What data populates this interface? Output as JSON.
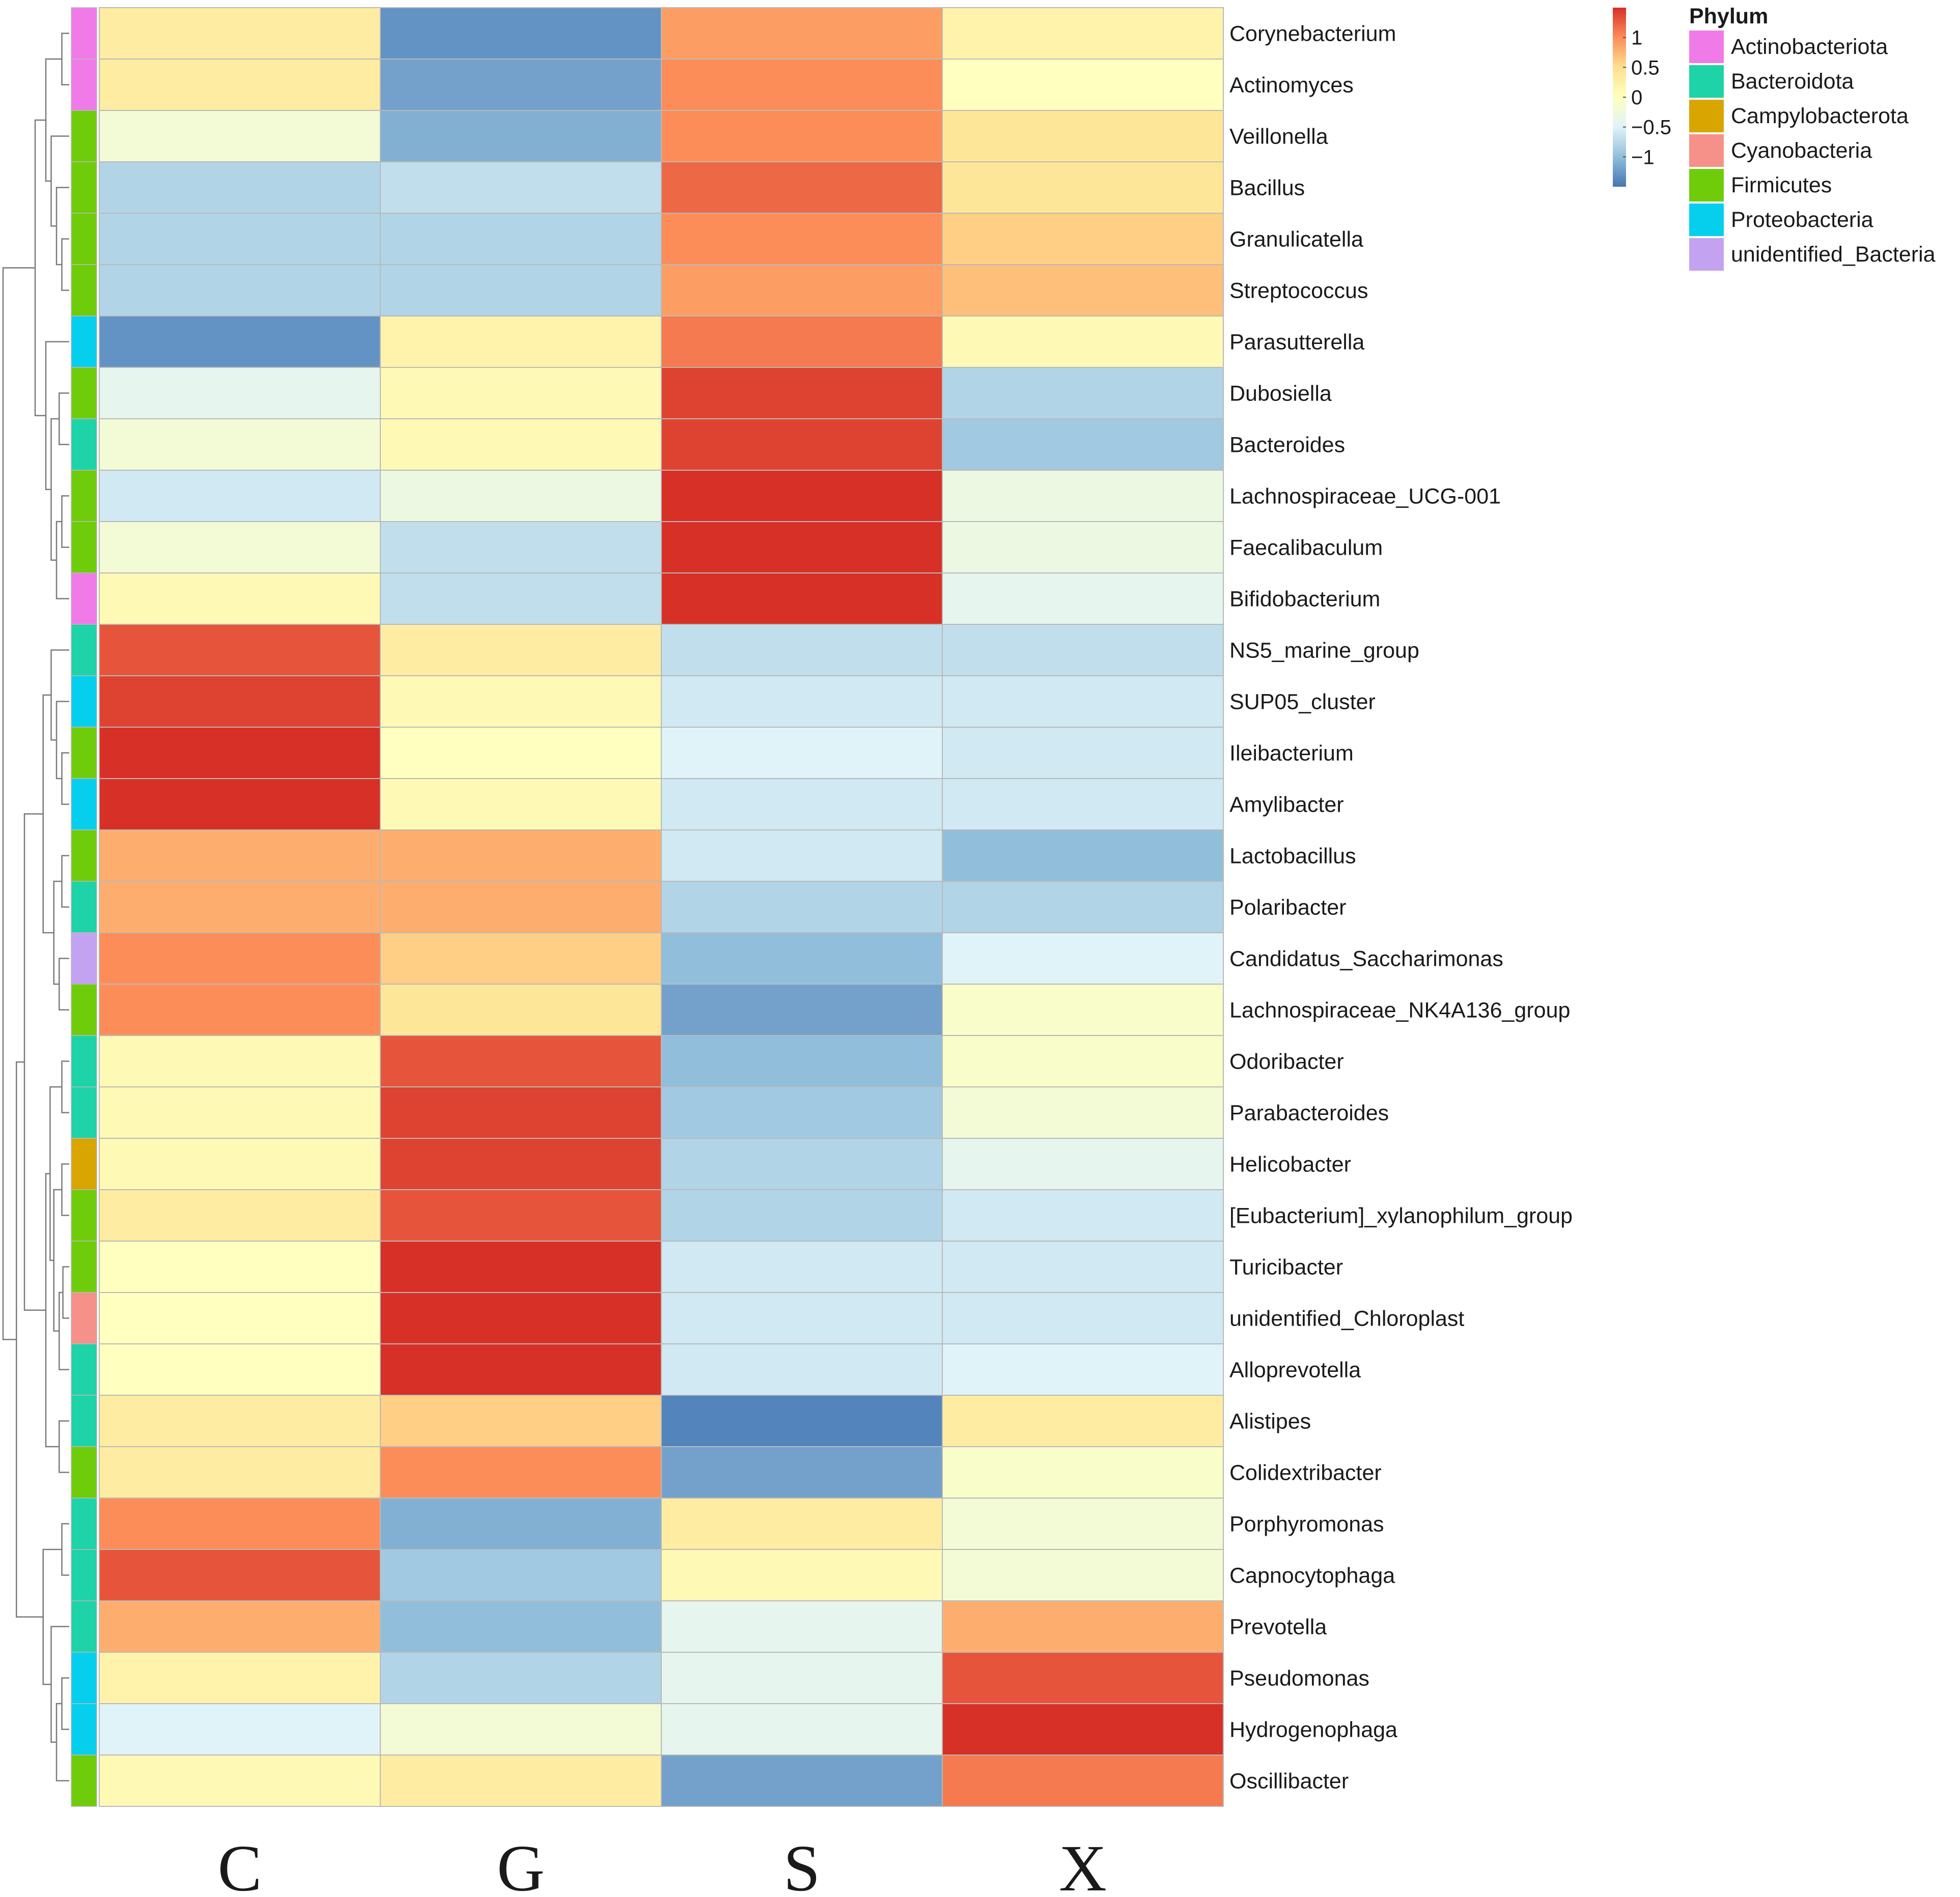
{
  "chart_data": {
    "type": "heatmap",
    "title": "",
    "xlabel": "",
    "ylabel": "",
    "value_range": [
      -1.5,
      1.5
    ],
    "columns": [
      "C",
      "G",
      "S",
      "X"
    ],
    "rows": [
      {
        "label": "Corynebacterium",
        "phylum": "Actinobacteriota",
        "values": [
          0.3,
          -1.3,
          0.9,
          0.2
        ]
      },
      {
        "label": "Actinomyces",
        "phylum": "Actinobacteriota",
        "values": [
          0.3,
          -1.2,
          1.0,
          0.0
        ]
      },
      {
        "label": "Veillonella",
        "phylum": "Firmicutes",
        "values": [
          -0.2,
          -1.1,
          1.0,
          0.4
        ]
      },
      {
        "label": "Bacillus",
        "phylum": "Firmicutes",
        "values": [
          -0.8,
          -0.7,
          1.2,
          0.4
        ]
      },
      {
        "label": "Granulicatella",
        "phylum": "Firmicutes",
        "values": [
          -0.8,
          -0.8,
          1.0,
          0.6
        ]
      },
      {
        "label": "Streptococcus",
        "phylum": "Firmicutes",
        "values": [
          -0.8,
          -0.8,
          0.9,
          0.7
        ]
      },
      {
        "label": "Parasutterella",
        "phylum": "Proteobacteria",
        "values": [
          -1.3,
          0.2,
          1.1,
          0.1
        ]
      },
      {
        "label": "Dubosiella",
        "phylum": "Firmicutes",
        "values": [
          -0.4,
          0.1,
          1.4,
          -0.8
        ]
      },
      {
        "label": "Bacteroides",
        "phylum": "Bacteroidota",
        "values": [
          -0.2,
          0.1,
          1.4,
          -0.9
        ]
      },
      {
        "label": "Lachnospiraceae_UCG-001",
        "phylum": "Firmicutes",
        "values": [
          -0.6,
          -0.3,
          1.5,
          -0.3
        ]
      },
      {
        "label": "Faecalibaculum",
        "phylum": "Firmicutes",
        "values": [
          -0.2,
          -0.7,
          1.5,
          -0.3
        ]
      },
      {
        "label": "Bifidobacterium",
        "phylum": "Actinobacteriota",
        "values": [
          0.1,
          -0.7,
          1.5,
          -0.4
        ]
      },
      {
        "label": "NS5_marine_group",
        "phylum": "Bacteroidota",
        "values": [
          1.3,
          0.3,
          -0.7,
          -0.7
        ]
      },
      {
        "label": "SUP05_cluster",
        "phylum": "Proteobacteria",
        "values": [
          1.4,
          0.1,
          -0.6,
          -0.6
        ]
      },
      {
        "label": "Ileibacterium",
        "phylum": "Firmicutes",
        "values": [
          1.5,
          0.0,
          -0.5,
          -0.6
        ]
      },
      {
        "label": "Amylibacter",
        "phylum": "Proteobacteria",
        "values": [
          1.5,
          0.1,
          -0.6,
          -0.6
        ]
      },
      {
        "label": "Lactobacillus",
        "phylum": "Firmicutes",
        "values": [
          0.8,
          0.8,
          -0.6,
          -1.0
        ]
      },
      {
        "label": "Polaribacter",
        "phylum": "Bacteroidota",
        "values": [
          0.8,
          0.8,
          -0.8,
          -0.8
        ]
      },
      {
        "label": "Candidatus_Saccharimonas",
        "phylum": "unidentified_Bacteria",
        "values": [
          1.0,
          0.6,
          -1.0,
          -0.5
        ]
      },
      {
        "label": "Lachnospiraceae_NK4A136_group",
        "phylum": "Firmicutes",
        "values": [
          1.0,
          0.4,
          -1.2,
          -0.1
        ]
      },
      {
        "label": "Odoribacter",
        "phylum": "Bacteroidota",
        "values": [
          0.1,
          1.3,
          -1.0,
          -0.1
        ]
      },
      {
        "label": "Parabacteroides",
        "phylum": "Bacteroidota",
        "values": [
          0.1,
          1.4,
          -0.9,
          -0.2
        ]
      },
      {
        "label": "Helicobacter",
        "phylum": "Campylobacterota",
        "values": [
          0.1,
          1.4,
          -0.8,
          -0.4
        ]
      },
      {
        "label": "[Eubacterium]_xylanophilum_group",
        "phylum": "Firmicutes",
        "values": [
          0.3,
          1.3,
          -0.8,
          -0.6
        ]
      },
      {
        "label": "Turicibacter",
        "phylum": "Firmicutes",
        "values": [
          0.0,
          1.5,
          -0.6,
          -0.6
        ]
      },
      {
        "label": "unidentified_Chloroplast",
        "phylum": "Cyanobacteria",
        "values": [
          0.0,
          1.5,
          -0.6,
          -0.6
        ]
      },
      {
        "label": "Alloprevotella",
        "phylum": "Bacteroidota",
        "values": [
          0.0,
          1.5,
          -0.6,
          -0.5
        ]
      },
      {
        "label": "Alistipes",
        "phylum": "Bacteroidota",
        "values": [
          0.3,
          0.6,
          -1.4,
          0.3
        ]
      },
      {
        "label": "Colidextribacter",
        "phylum": "Firmicutes",
        "values": [
          0.3,
          1.0,
          -1.2,
          -0.1
        ]
      },
      {
        "label": "Porphyromonas",
        "phylum": "Bacteroidota",
        "values": [
          1.0,
          -1.1,
          0.3,
          -0.2
        ]
      },
      {
        "label": "Capnocytophaga",
        "phylum": "Bacteroidota",
        "values": [
          1.3,
          -0.9,
          0.1,
          -0.2
        ]
      },
      {
        "label": "Prevotella",
        "phylum": "Bacteroidota",
        "values": [
          0.8,
          -1.0,
          -0.4,
          0.8
        ]
      },
      {
        "label": "Pseudomonas",
        "phylum": "Proteobacteria",
        "values": [
          0.2,
          -0.8,
          -0.4,
          1.3
        ]
      },
      {
        "label": "Hydrogenophaga",
        "phylum": "Proteobacteria",
        "values": [
          -0.5,
          -0.2,
          -0.4,
          1.5
        ]
      },
      {
        "label": "Oscillibacter",
        "phylum": "Firmicutes",
        "values": [
          0.1,
          0.3,
          -1.2,
          1.1
        ]
      }
    ],
    "color_scale": {
      "ticks": [
        {
          "value": 1,
          "label": "1"
        },
        {
          "value": 0.5,
          "label": "0.5"
        },
        {
          "value": 0,
          "label": "0"
        },
        {
          "value": -0.5,
          "label": "−0.5"
        },
        {
          "value": -1,
          "label": "−1"
        }
      ],
      "stops": [
        "#4575b4",
        "#91bfdb",
        "#e0f3f8",
        "#ffffbf",
        "#fee090",
        "#fc8d59",
        "#d73027"
      ]
    },
    "legend": {
      "title": "Phylum",
      "placement": "top-right",
      "entries": [
        {
          "name": "Actinobacteriota",
          "color": "#f07ae8"
        },
        {
          "name": "Bacteroidota",
          "color": "#1dd3a7"
        },
        {
          "name": "Campylobacterota",
          "color": "#d9a500"
        },
        {
          "name": "Cyanobacteria",
          "color": "#f59188"
        },
        {
          "name": "Firmicutes",
          "color": "#6fcc0a"
        },
        {
          "name": "Proteobacteria",
          "color": "#06cfee"
        },
        {
          "name": "unidentified_Bacteria",
          "color": "#c4a2f2"
        }
      ]
    }
  }
}
